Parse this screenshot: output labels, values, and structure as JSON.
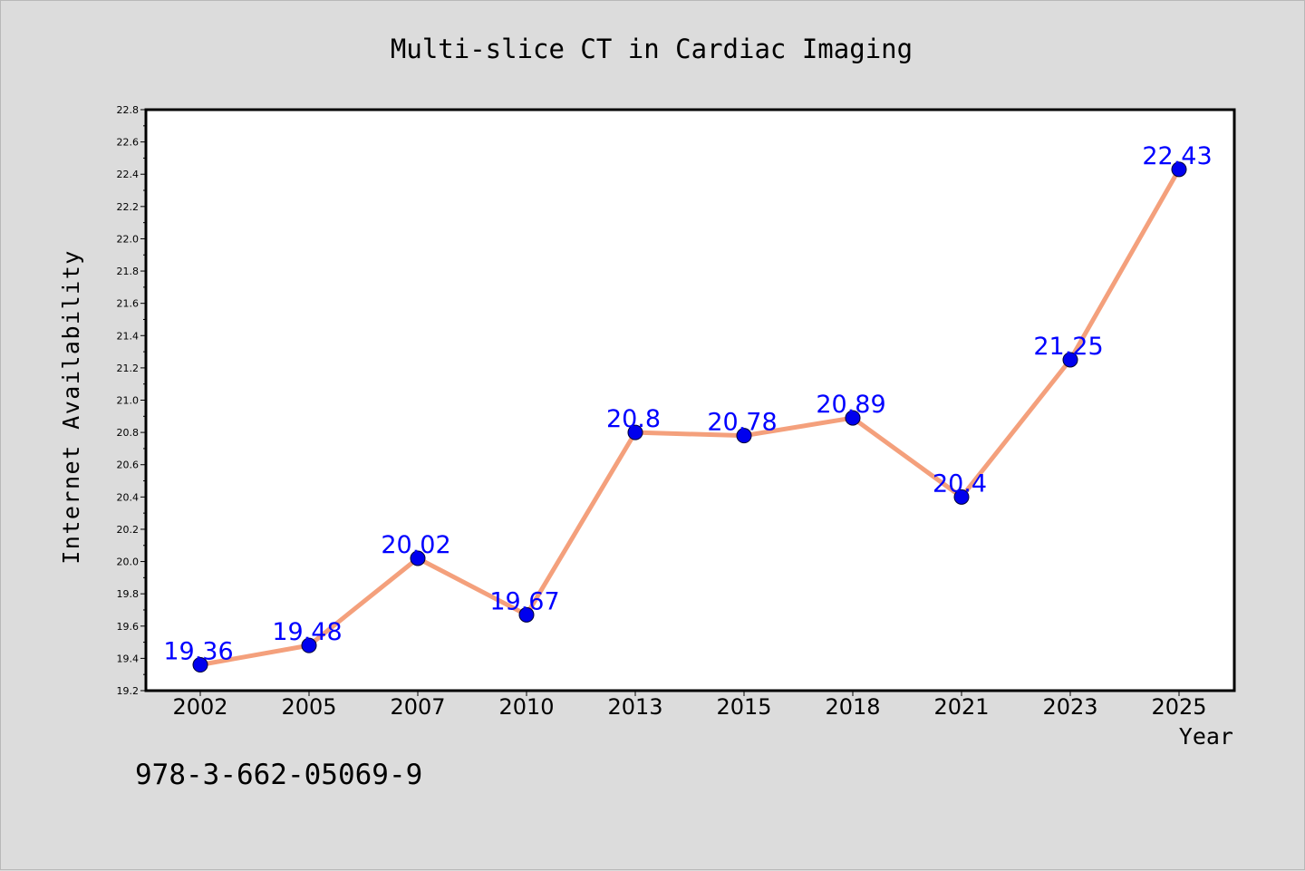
{
  "chart_data": {
    "type": "line",
    "title": "Multi-slice CT in Cardiac Imaging",
    "xlabel": "Year",
    "ylabel": "Internet Availability",
    "categories": [
      "2002",
      "2005",
      "2007",
      "2010",
      "2013",
      "2015",
      "2018",
      "2021",
      "2023",
      "2025"
    ],
    "series": [
      {
        "values": [
          19.36,
          19.48,
          20.02,
          19.67,
          20.8,
          20.78,
          20.89,
          20.4,
          21.25,
          22.43
        ],
        "labels": [
          "19.36",
          "19.48",
          "20.02",
          "19.67",
          "20.8",
          "20.78",
          "20.89",
          "20.4",
          "21.25",
          "22.43"
        ]
      }
    ],
    "ylim": [
      19.2,
      22.8
    ],
    "yticks": [
      "19.2",
      "19.4",
      "19.6",
      "19.8",
      "20.0",
      "20.2",
      "20.4",
      "20.6",
      "20.8",
      "21.0",
      "21.2",
      "21.4",
      "21.6",
      "21.8",
      "22.0",
      "22.2",
      "22.4",
      "22.6",
      "22.8"
    ],
    "grid": false,
    "legend": "none",
    "annotation": "978-3-662-05069-9",
    "colors": {
      "line": "#f4a07c",
      "marker": "#0000ee",
      "data_label": "#0000ff",
      "background": "#dcdcdc",
      "plot_background": "#ffffff",
      "axis": "#000000"
    }
  }
}
